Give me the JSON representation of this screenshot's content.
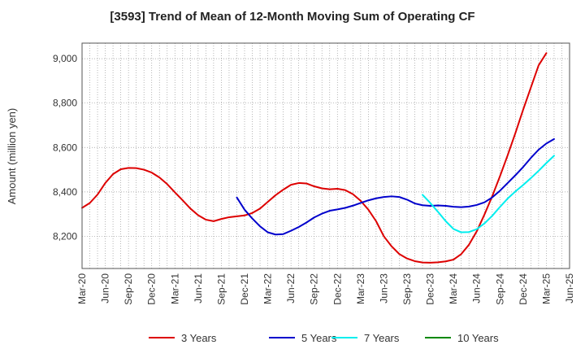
{
  "chart_data": {
    "type": "line",
    "title": "[3593]  Trend of Mean of 12-Month Moving Sum of Operating CF",
    "xlabel": "",
    "ylabel": "Amount (million yen)",
    "ylim": [
      8055,
      9070
    ],
    "yticks": [
      8200,
      8400,
      8600,
      8800,
      9000
    ],
    "ytick_labels": [
      "8,200",
      "8,400",
      "8,600",
      "8,800",
      "9,000"
    ],
    "xlim": [
      "Mar-20",
      "Jun-25"
    ],
    "xtick_labels": [
      "Mar-20",
      "Jun-20",
      "Sep-20",
      "Dec-20",
      "Mar-21",
      "Jun-21",
      "Sep-21",
      "Dec-21",
      "Mar-22",
      "Jun-22",
      "Sep-22",
      "Dec-22",
      "Mar-23",
      "Jun-23",
      "Sep-23",
      "Dec-23",
      "Mar-24",
      "Jun-24",
      "Sep-24",
      "Dec-24",
      "Mar-25",
      "Jun-25"
    ],
    "grid": true,
    "legend_position": "bottom",
    "series": [
      {
        "name": "3 Years",
        "color": "#dd0000",
        "start": "Mar-20",
        "values": [
          8328,
          8350,
          8388,
          8440,
          8480,
          8502,
          8508,
          8507,
          8500,
          8487,
          8465,
          8435,
          8398,
          8362,
          8325,
          8295,
          8275,
          8268,
          8278,
          8286,
          8290,
          8294,
          8305,
          8325,
          8355,
          8385,
          8410,
          8432,
          8440,
          8438,
          8425,
          8416,
          8412,
          8414,
          8408,
          8390,
          8360,
          8320,
          8268,
          8200,
          8155,
          8120,
          8100,
          8088,
          8082,
          8081,
          8083,
          8087,
          8095,
          8120,
          8162,
          8222,
          8298,
          8380,
          8470,
          8565,
          8665,
          8770,
          8870,
          8970,
          9025
        ]
      },
      {
        "name": "5 Years",
        "color": "#0000cc",
        "start": "Nov-21",
        "values": [
          8375,
          8320,
          8280,
          8245,
          8218,
          8208,
          8210,
          8225,
          8242,
          8262,
          8285,
          8302,
          8315,
          8321,
          8328,
          8338,
          8350,
          8362,
          8371,
          8377,
          8380,
          8377,
          8365,
          8348,
          8340,
          8337,
          8339,
          8337,
          8333,
          8331,
          8334,
          8341,
          8353,
          8375,
          8405,
          8440,
          8475,
          8512,
          8553,
          8590,
          8618,
          8638
        ]
      },
      {
        "name": "7 Years",
        "color": "#00eeee",
        "start": "Nov-23",
        "values": [
          8387,
          8350,
          8310,
          8268,
          8233,
          8218,
          8219,
          8232,
          8258,
          8292,
          8332,
          8370,
          8402,
          8431,
          8462,
          8495,
          8530,
          8563
        ]
      },
      {
        "name": "10 Years",
        "color": "#008800",
        "start": "Mar-25",
        "values": []
      }
    ]
  }
}
